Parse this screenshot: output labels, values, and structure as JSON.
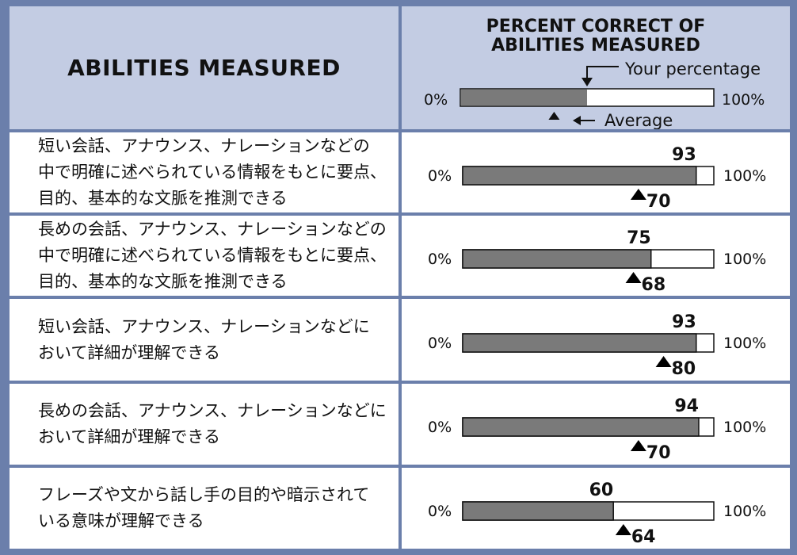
{
  "header": {
    "abilities_title": "ABILITIES MEASURED",
    "percent_title_line1": "PERCENT CORRECT OF",
    "percent_title_line2": "ABILITIES MEASURED",
    "legend": {
      "your_percentage_label": "Your percentage",
      "average_label": "Average",
      "min_label": "0%",
      "max_label": "100%"
    }
  },
  "colors": {
    "frame": "#6b7fab",
    "header_bg": "#c3cce3",
    "bar_fill": "#7a7a7a",
    "bar_track": "#ffffff"
  },
  "abilities": [
    {
      "lines": [
        "短い会話、アナウンス、ナレーションなどの",
        "中で明確に述べられている情報をもとに要点、",
        "目的、基本的な文脈を推測できる"
      ]
    },
    {
      "lines": [
        "長めの会話、アナウンス、ナレーションなどの",
        "中で明確に述べられている情報をもとに要点、",
        "目的、基本的な文脈を推測できる"
      ]
    },
    {
      "lines": [
        "短い会話、アナウンス、ナレーションなどに",
        "おいて詳細が理解できる"
      ]
    },
    {
      "lines": [
        "長めの会話、アナウンス、ナレーションなどに",
        "おいて詳細が理解できる"
      ]
    },
    {
      "lines": [
        "フレーズや文から話し手の目的や暗示されて",
        "いる意味が理解できる"
      ]
    }
  ],
  "chart_data": {
    "type": "bar",
    "orientation": "horizontal",
    "xlim": [
      0,
      100
    ],
    "axis_labels": {
      "min": "0%",
      "max": "100%"
    },
    "categories": [
      "短い会話、アナウンス、ナレーションなどの中で明確に述べられている情報をもとに要点、目的、基本的な文脈を推測できる",
      "長めの会話、アナウンス、ナレーションなどの中で明確に述べられている情報をもとに要点、目的、基本的な文脈を推測できる",
      "短い会話、アナウンス、ナレーションなどにおいて詳細が理解できる",
      "長めの会話、アナウンス、ナレーションなどにおいて詳細が理解できる",
      "フレーズや文から話し手の目的や暗示されている意味が理解できる"
    ],
    "series": [
      {
        "name": "Your percentage",
        "values": [
          93,
          75,
          93,
          94,
          60
        ]
      },
      {
        "name": "Average",
        "values": [
          70,
          68,
          80,
          70,
          64
        ]
      }
    ],
    "legend_example": {
      "your_percentage": 50,
      "average": 37
    }
  }
}
